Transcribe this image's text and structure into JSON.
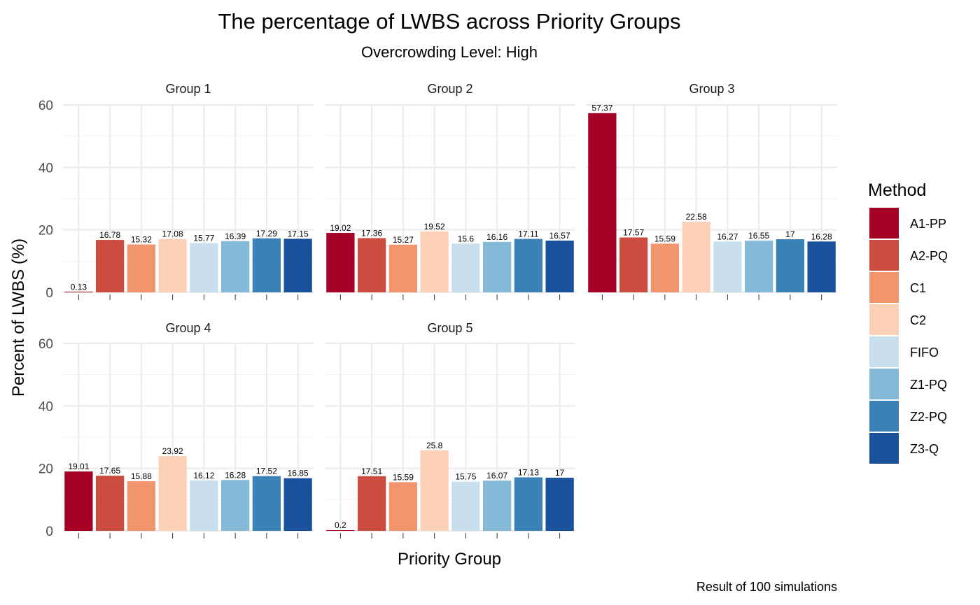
{
  "chart_data": {
    "type": "bar",
    "title": "The percentage of LWBS across Priority Groups",
    "subtitle": "Overcrowding Level: High",
    "xlabel": "Priority Group",
    "ylabel": "Percent of LWBS (%)",
    "caption": "Result of 100 simulations",
    "ylim": [
      0,
      60
    ],
    "yticks": [
      0,
      20,
      40,
      60
    ],
    "grid": true,
    "legend": {
      "title": "Method",
      "position": "right"
    },
    "methods": [
      "A1-PP",
      "A2-PQ",
      "C1",
      "C2",
      "FIFO",
      "Z1-PQ",
      "Z2-PQ",
      "Z3-Q"
    ],
    "colors": [
      "#a50026",
      "#cc4c3f",
      "#f0956e",
      "#fdd0b8",
      "#c9dfed",
      "#84b9d7",
      "#3a81b8",
      "#1a519c"
    ],
    "panels": [
      {
        "name": "Group 1",
        "values": [
          0.13,
          16.78,
          15.32,
          17.08,
          15.77,
          16.39,
          17.29,
          17.15
        ],
        "labels": [
          "0.13",
          "16.78",
          "15.32",
          "17.08",
          "15.77",
          "16.39",
          "17.29",
          "17.15"
        ]
      },
      {
        "name": "Group 2",
        "values": [
          19.02,
          17.36,
          15.27,
          19.52,
          15.6,
          16.16,
          17.11,
          16.57
        ],
        "labels": [
          "19.02",
          "17.36",
          "15.27",
          "19.52",
          "15.6",
          "16.16",
          "17.11",
          "16.57"
        ]
      },
      {
        "name": "Group 3",
        "values": [
          57.37,
          17.57,
          15.59,
          22.58,
          16.27,
          16.55,
          17,
          16.28
        ],
        "labels": [
          "57.37",
          "17.57",
          "15.59",
          "22.58",
          "16.27",
          "16.55",
          "17",
          "16.28"
        ]
      },
      {
        "name": "Group 4",
        "values": [
          19.01,
          17.65,
          15.88,
          23.92,
          16.12,
          16.28,
          17.52,
          16.85
        ],
        "labels": [
          "19.01",
          "17.65",
          "15.88",
          "23.92",
          "16.12",
          "16.28",
          "17.52",
          "16.85"
        ]
      },
      {
        "name": "Group 5",
        "values": [
          0.2,
          17.51,
          15.59,
          25.8,
          15.75,
          16.07,
          17.13,
          17
        ],
        "labels": [
          "0.2",
          "17.51",
          "15.59",
          "25.8",
          "15.75",
          "16.07",
          "17.13",
          "17"
        ]
      }
    ]
  }
}
